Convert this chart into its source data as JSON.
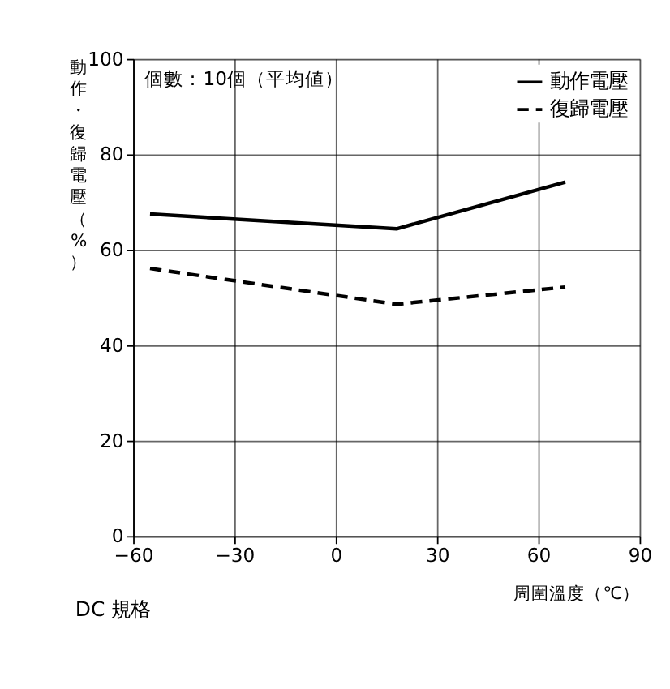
{
  "chart_data": {
    "type": "line",
    "xlabel": "周圍溫度（℃）",
    "ylabel": "動作・復歸電壓（%）",
    "annotations": [
      "個數：10個（平均値）",
      "DC 規格"
    ],
    "xlim": [
      -60,
      90
    ],
    "xticks": [
      -60,
      -30,
      0,
      30,
      60,
      90
    ],
    "ylim": [
      0,
      100
    ],
    "yticks": [
      0,
      20,
      40,
      60,
      80,
      100
    ],
    "grid": true,
    "legend": "top right",
    "marker": "none",
    "series": [
      {
        "name": "動作電壓",
        "color": "#000000",
        "line_style": "solid",
        "x": [
          -55,
          18,
          68
        ],
        "values": [
          67.5,
          64.4,
          74.2
        ]
      },
      {
        "name": "復歸電壓",
        "color": "#000000",
        "line_style": "dashed",
        "x": [
          -55,
          18,
          68
        ],
        "values": [
          56.1,
          48.6,
          52.2
        ]
      }
    ]
  }
}
